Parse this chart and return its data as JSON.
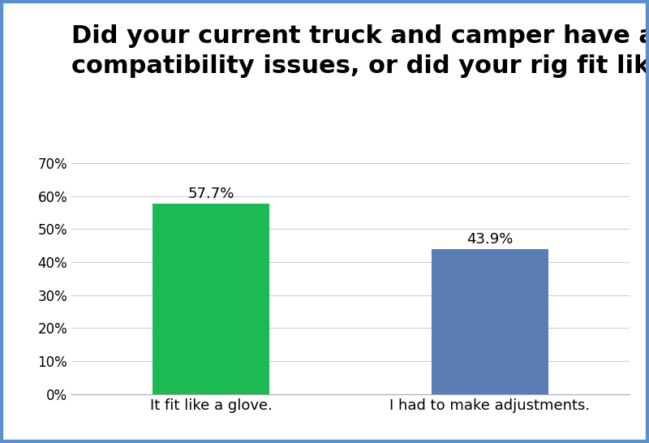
{
  "title": "Did your current truck and camper have any fit\ncompatibility issues, or did your rig fit like a glove?",
  "categories": [
    "It fit like a glove.",
    "I had to make adjustments."
  ],
  "values": [
    57.7,
    43.9
  ],
  "bar_colors": [
    "#1db954",
    "#5b7db5"
  ],
  "bar_labels": [
    "57.7%",
    "43.9%"
  ],
  "ylim": [
    0,
    70
  ],
  "yticks": [
    0,
    10,
    20,
    30,
    40,
    50,
    60,
    70
  ],
  "ytick_labels": [
    "0%",
    "10%",
    "20%",
    "30%",
    "40%",
    "50%",
    "60%",
    "70%"
  ],
  "background_color": "#ffffff",
  "border_color": "#5b8fc9",
  "title_fontsize": 22,
  "label_fontsize": 13,
  "bar_label_fontsize": 13,
  "tick_fontsize": 12,
  "bar_width": 0.42
}
